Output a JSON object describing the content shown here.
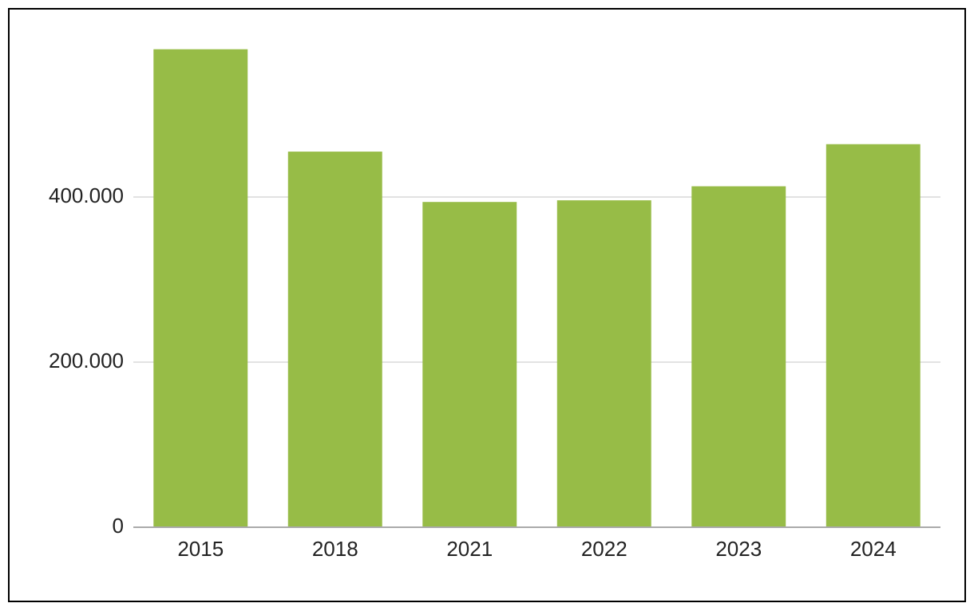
{
  "chart_data": {
    "type": "bar",
    "categories": [
      "2015",
      "2018",
      "2021",
      "2022",
      "2023",
      "2024"
    ],
    "values": [
      579000,
      455000,
      394000,
      396000,
      413000,
      464000
    ],
    "color": "#97bc47",
    "ylim": [
      0,
      600000
    ],
    "yticks": [
      0,
      {
        "value": 200000,
        "label": "200.000"
      },
      {
        "value": 400000,
        "label": "400.000"
      }
    ],
    "grid": true
  }
}
